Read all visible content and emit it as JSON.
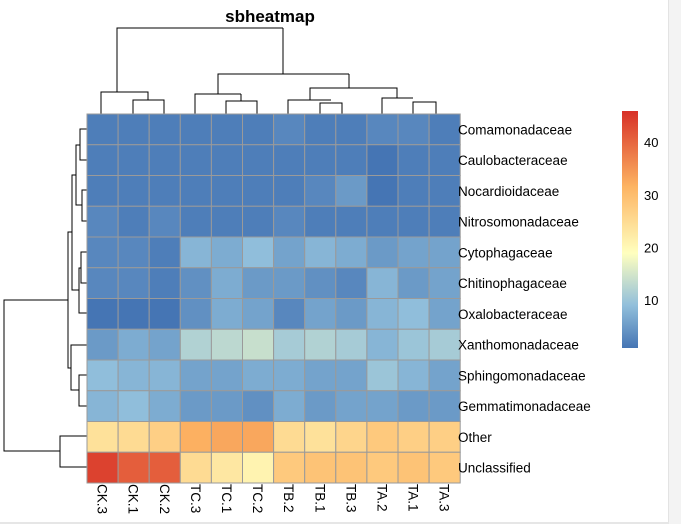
{
  "chart_data": {
    "type": "heatmap",
    "title": "sbheatmap",
    "columns": [
      "CK.3",
      "CK.1",
      "CK.2",
      "TC.3",
      "TC.1",
      "TC.2",
      "TB.2",
      "TB.1",
      "TB.3",
      "TA.2",
      "TA.1",
      "TA.3"
    ],
    "rows": [
      "Comamonadaceae",
      "Caulobacteraceae",
      "Nocardioidaceae",
      "Nitrosomonadaceae",
      "Cytophagaceae",
      "Chitinophagaceae",
      "Oxalobacteraceae",
      "Xanthomonadaceae",
      "Sphingomonadaceae",
      "Gemmatimonadaceae",
      "Other",
      "Unclassified"
    ],
    "values": [
      [
        2,
        2,
        2,
        2,
        2,
        2,
        3,
        2,
        2,
        3,
        3,
        2
      ],
      [
        2,
        2,
        2,
        2,
        2,
        2,
        2,
        2,
        2,
        1,
        2,
        2
      ],
      [
        2,
        2,
        2,
        2,
        2,
        2,
        2,
        3,
        5,
        1,
        2,
        2
      ],
      [
        3,
        2,
        3,
        2,
        2,
        2,
        3,
        2,
        2,
        2,
        2,
        2
      ],
      [
        3,
        3,
        2,
        8,
        7,
        9,
        6,
        8,
        7,
        5,
        6,
        6
      ],
      [
        3,
        3,
        2,
        4,
        7,
        5,
        5,
        4,
        3,
        8,
        5,
        6
      ],
      [
        1,
        1,
        1,
        4,
        7,
        6,
        3,
        6,
        5,
        8,
        9,
        6
      ],
      [
        5,
        7,
        6,
        12,
        13,
        14,
        11,
        12,
        11,
        8,
        10,
        11
      ],
      [
        9,
        8,
        8,
        6,
        6,
        7,
        7,
        6,
        6,
        10,
        8,
        6
      ],
      [
        8,
        9,
        7,
        5,
        5,
        4,
        7,
        5,
        6,
        6,
        5,
        5
      ],
      [
        24,
        25,
        27,
        32,
        33,
        33,
        25,
        24,
        26,
        28,
        27,
        27
      ],
      [
        44,
        41,
        41,
        25,
        23,
        21,
        28,
        29,
        29,
        28,
        29,
        28
      ]
    ],
    "legend": {
      "ticks": [
        10,
        20,
        30,
        40
      ],
      "range": [
        1,
        46
      ],
      "placement": "right"
    },
    "colors": {
      "low": "#4575b4",
      "mid": "#ffffbf",
      "high": "#d73027"
    }
  }
}
